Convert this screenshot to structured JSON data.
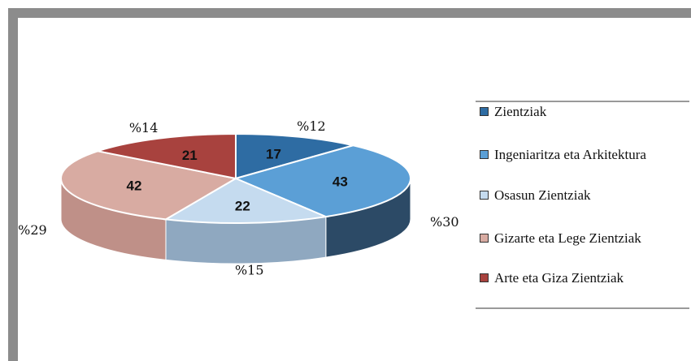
{
  "chart_data": {
    "type": "pie3d",
    "categories": [
      "Zientziak",
      "Ingeniaritza eta Arkitektura",
      "Osasun Zientziak",
      "Gizarte eta Lege Zientziak",
      "Arte eta Giza Zientziak"
    ],
    "values": [
      17,
      43,
      22,
      42,
      21
    ],
    "percent_labels": [
      "%12",
      "%30",
      "%15",
      "%29",
      "%14"
    ],
    "colors": [
      "#2e6ca3",
      "#5b9fd6",
      "#c5dbef",
      "#d8aba2",
      "#a8423e"
    ],
    "side_colors": [
      "#1f4466",
      "#2c4a66",
      "#8fa8c0",
      "#bf9088",
      "#7a2c2a"
    ],
    "legend": "right"
  }
}
